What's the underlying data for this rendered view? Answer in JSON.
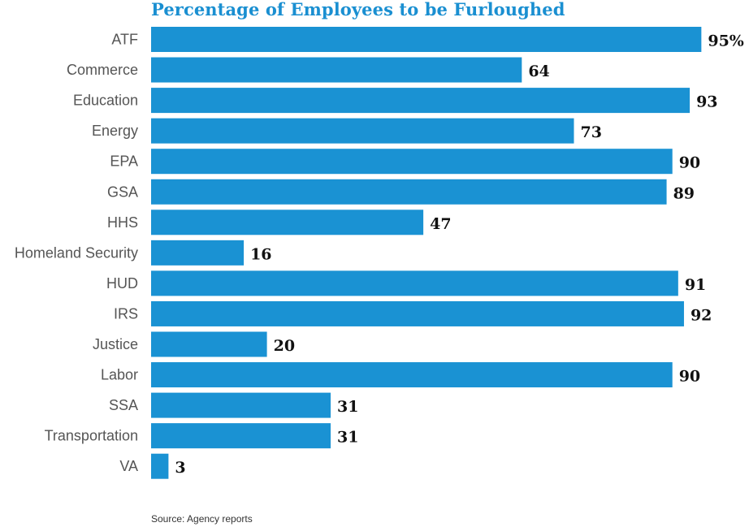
{
  "chart_data": {
    "type": "bar",
    "orientation": "horizontal",
    "title": "Percentage of Employees to be Furloughed",
    "categories": [
      "ATF",
      "Commerce",
      "Education",
      "Energy",
      "EPA",
      "GSA",
      "HHS",
      "Homeland Security",
      "HUD",
      "IRS",
      "Justice",
      "Labor",
      "SSA",
      "Transportation",
      "VA"
    ],
    "values": [
      95,
      64,
      93,
      73,
      90,
      89,
      47,
      16,
      91,
      92,
      20,
      90,
      31,
      31,
      3
    ],
    "data_labels": [
      "95%",
      "64",
      "93",
      "73",
      "90",
      "89",
      "47",
      "16",
      "91",
      "92",
      "20",
      "90",
      "31",
      "31",
      "3"
    ],
    "xlim": [
      0,
      100
    ],
    "grid": false,
    "legend": "none"
  },
  "source": "Source: Agency reports",
  "colors": {
    "bar": "#1a92d3",
    "title": "#1a8fd1",
    "category_label": "#555555",
    "value_label": "#111111"
  }
}
